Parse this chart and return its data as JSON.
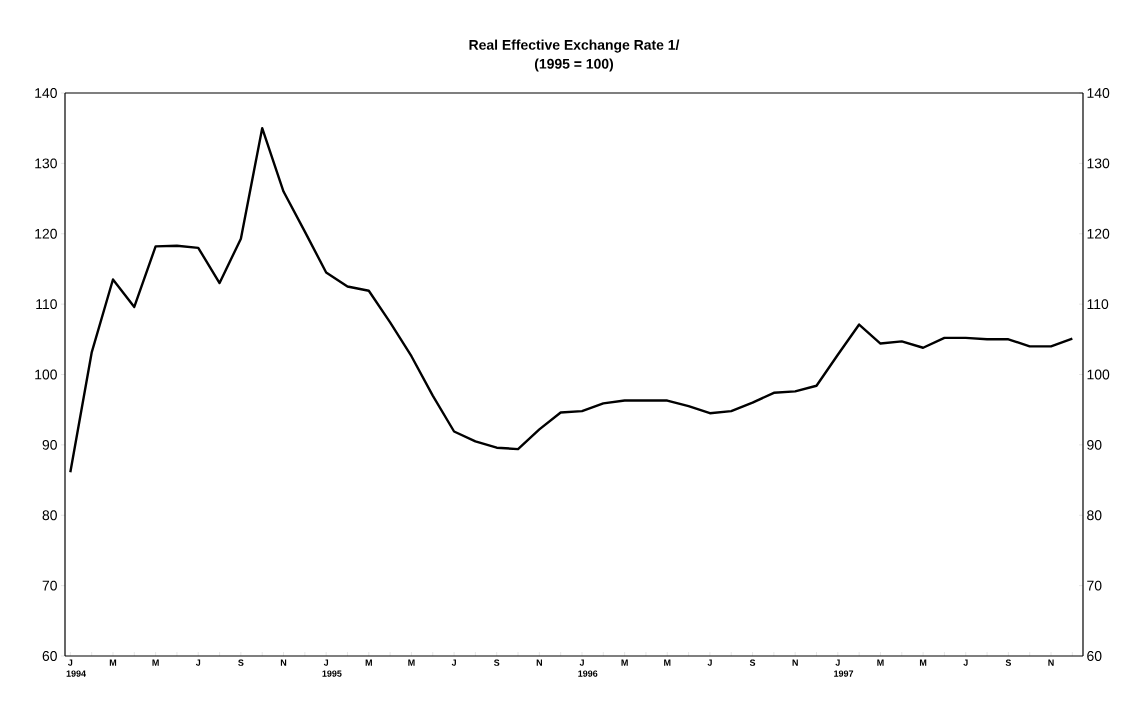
{
  "chart_data": {
    "type": "line",
    "title": "Real Effective Exchange Rate  1/",
    "subtitle": "(1995 = 100)",
    "categories": [
      "J 1994",
      null,
      "M",
      null,
      "M",
      null,
      "J",
      null,
      "S",
      null,
      "N",
      null,
      "J 1995",
      null,
      "M",
      null,
      "M",
      null,
      "J",
      null,
      "S",
      null,
      "N",
      null,
      "J 1996",
      null,
      "M",
      null,
      "M",
      null,
      "J",
      null,
      "S",
      null,
      "N",
      null,
      "J 1997",
      null,
      "M",
      null,
      "M",
      null,
      "J",
      null,
      "S",
      null,
      "N",
      null
    ],
    "values": [
      86.1,
      103.1,
      113.5,
      109.6,
      118.2,
      118.3,
      118.0,
      113.0,
      119.3,
      135.0,
      126.0,
      120.3,
      114.5,
      112.5,
      111.9,
      107.4,
      102.6,
      97.0,
      91.9,
      90.5,
      89.6,
      89.4,
      92.2,
      94.6,
      94.8,
      95.9,
      96.3,
      96.3,
      96.3,
      95.5,
      94.5,
      94.8,
      96.0,
      97.4,
      97.6,
      98.4,
      102.8,
      107.1,
      104.4,
      104.7,
      103.8,
      105.2,
      105.2,
      105.0,
      105.0,
      104.0,
      104.0,
      105.1
    ],
    "color": "#000000",
    "ylim": [
      60,
      140
    ],
    "yticks": [
      60,
      70,
      80,
      90,
      100,
      110,
      120,
      130,
      140
    ],
    "y2lim": [
      60,
      140
    ],
    "y2ticks": [
      60,
      70,
      80,
      90,
      100,
      110,
      120,
      130,
      140
    ]
  }
}
